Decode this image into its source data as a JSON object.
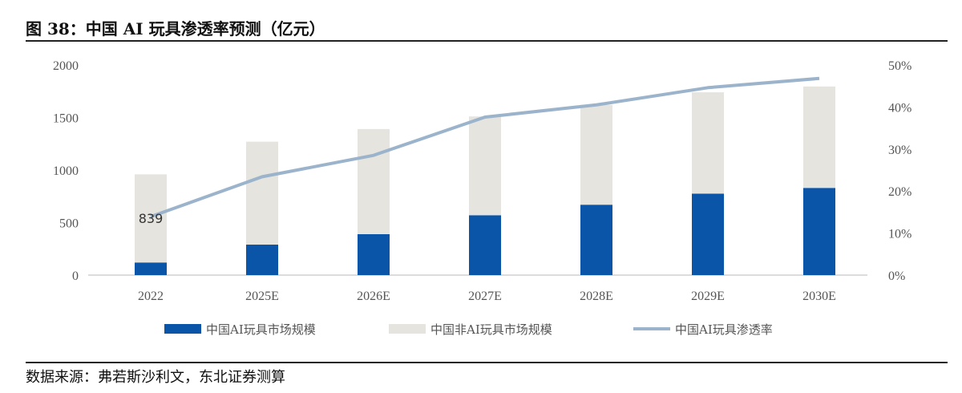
{
  "title": "图 38：中国 AI 玩具渗透率预测（亿元）",
  "source": "数据来源：弗若斯沙利文，东北证券测算",
  "chart_data": {
    "type": "bar",
    "stacked": true,
    "categories": [
      "2022",
      "2025E",
      "2026E",
      "2027E",
      "2028E",
      "2029E",
      "2030E"
    ],
    "series": [
      {
        "name": "中国AI玩具市场规模",
        "type": "bar",
        "axis": "left",
        "color": "#0a55a8",
        "values": [
          120,
          290,
          390,
          570,
          670,
          775,
          830
        ]
      },
      {
        "name": "中国非AI玩具市场规模",
        "type": "bar",
        "axis": "left",
        "color": "#e6e4df",
        "values": [
          839,
          980,
          1000,
          940,
          950,
          965,
          965
        ]
      },
      {
        "name": "中国AI玩具渗透率",
        "type": "line",
        "axis": "right",
        "color": "#9bb4cc",
        "values": [
          13.9,
          23.4,
          28.5,
          37.6,
          40.5,
          44.6,
          46.8
        ]
      }
    ],
    "data_labels": [
      {
        "category": "2022",
        "text": "839"
      }
    ],
    "y_left": {
      "range": [
        0,
        2000
      ],
      "ticks": [
        "0",
        "500",
        "1000",
        "1500",
        "2000"
      ]
    },
    "y_right": {
      "range": [
        0,
        50
      ],
      "unit": "%",
      "ticks": [
        "0%",
        "10%",
        "20%",
        "30%",
        "40%",
        "50%"
      ]
    },
    "grid": false,
    "legend": "bottom"
  }
}
